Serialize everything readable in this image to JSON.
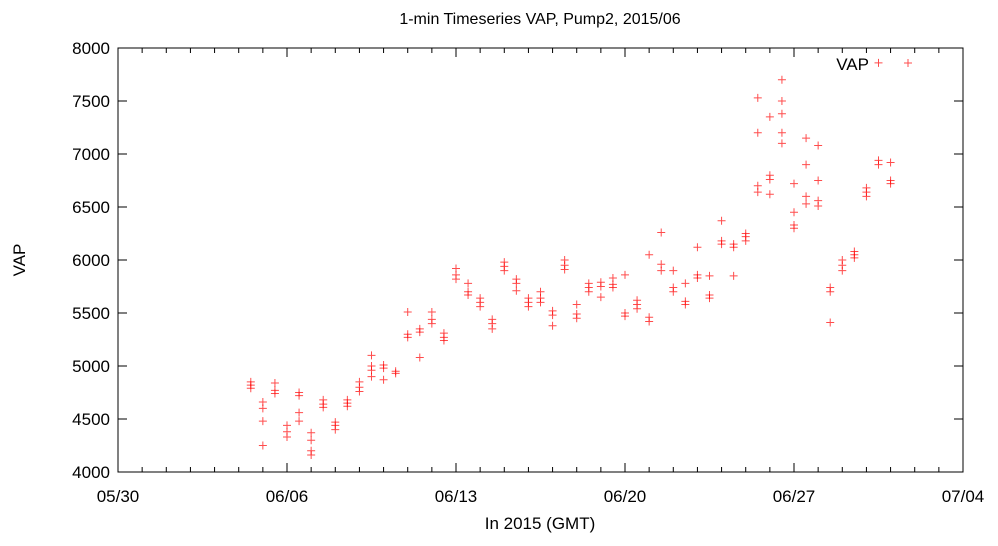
{
  "chart_data": {
    "type": "scatter",
    "title": "1-min Timeseries VAP, Pump2, 2015/06",
    "xlabel": "In 2015 (GMT)",
    "ylabel": "VAP",
    "xlim": [
      "2015-05-30",
      "2015-07-04"
    ],
    "ylim": [
      4000,
      8000
    ],
    "x_ticks": [
      "05/30",
      "06/06",
      "06/13",
      "06/20",
      "06/27",
      "07/04"
    ],
    "y_ticks": [
      "4000",
      "4500",
      "5000",
      "5500",
      "6000",
      "6500",
      "7000",
      "7500",
      "8000"
    ],
    "grid": false,
    "legend": {
      "position": "top-right",
      "entries": [
        "VAP"
      ]
    },
    "marker": "+",
    "series": [
      {
        "name": "VAP",
        "color": "#ff0000",
        "points": [
          [
            "2015-06-04 12:00",
            4850
          ],
          [
            "2015-06-04 12:00",
            4820
          ],
          [
            "2015-06-04 12:00",
            4790
          ],
          [
            "2015-06-05 00:00",
            4660
          ],
          [
            "2015-06-05 00:00",
            4600
          ],
          [
            "2015-06-05 00:00",
            4480
          ],
          [
            "2015-06-05 00:00",
            4250
          ],
          [
            "2015-06-05 12:00",
            4770
          ],
          [
            "2015-06-05 12:00",
            4740
          ],
          [
            "2015-06-05 12:00",
            4840
          ],
          [
            "2015-06-06 00:00",
            4440
          ],
          [
            "2015-06-06 00:00",
            4380
          ],
          [
            "2015-06-06 00:00",
            4330
          ],
          [
            "2015-06-06 12:00",
            4750
          ],
          [
            "2015-06-06 12:00",
            4720
          ],
          [
            "2015-06-06 12:00",
            4560
          ],
          [
            "2015-06-06 12:00",
            4480
          ],
          [
            "2015-06-07 00:00",
            4370
          ],
          [
            "2015-06-07 00:00",
            4300
          ],
          [
            "2015-06-07 00:00",
            4200
          ],
          [
            "2015-06-07 00:00",
            4160
          ],
          [
            "2015-06-07 12:00",
            4640
          ],
          [
            "2015-06-07 12:00",
            4610
          ],
          [
            "2015-06-07 12:00",
            4680
          ],
          [
            "2015-06-08 00:00",
            4470
          ],
          [
            "2015-06-08 00:00",
            4440
          ],
          [
            "2015-06-08 00:00",
            4400
          ],
          [
            "2015-06-08 12:00",
            4650
          ],
          [
            "2015-06-08 12:00",
            4620
          ],
          [
            "2015-06-08 12:00",
            4680
          ],
          [
            "2015-06-09 00:00",
            4800
          ],
          [
            "2015-06-09 00:00",
            4760
          ],
          [
            "2015-06-09 00:00",
            4850
          ],
          [
            "2015-06-09 12:00",
            5000
          ],
          [
            "2015-06-09 12:00",
            4960
          ],
          [
            "2015-06-09 12:00",
            4900
          ],
          [
            "2015-06-09 12:00",
            5100
          ],
          [
            "2015-06-10 00:00",
            5010
          ],
          [
            "2015-06-10 00:00",
            4980
          ],
          [
            "2015-06-10 00:00",
            4870
          ],
          [
            "2015-06-10 12:00",
            4950
          ],
          [
            "2015-06-10 12:00",
            4930
          ],
          [
            "2015-06-11 00:00",
            5300
          ],
          [
            "2015-06-11 00:00",
            5270
          ],
          [
            "2015-06-11 00:00",
            5510
          ],
          [
            "2015-06-11 12:00",
            5350
          ],
          [
            "2015-06-11 12:00",
            5320
          ],
          [
            "2015-06-11 12:00",
            5080
          ],
          [
            "2015-06-12 00:00",
            5440
          ],
          [
            "2015-06-12 00:00",
            5400
          ],
          [
            "2015-06-12 00:00",
            5510
          ],
          [
            "2015-06-12 12:00",
            5310
          ],
          [
            "2015-06-12 12:00",
            5270
          ],
          [
            "2015-06-12 12:00",
            5240
          ],
          [
            "2015-06-13 00:00",
            5860
          ],
          [
            "2015-06-13 00:00",
            5820
          ],
          [
            "2015-06-13 00:00",
            5920
          ],
          [
            "2015-06-13 12:00",
            5700
          ],
          [
            "2015-06-13 12:00",
            5670
          ],
          [
            "2015-06-13 12:00",
            5780
          ],
          [
            "2015-06-14 00:00",
            5600
          ],
          [
            "2015-06-14 00:00",
            5560
          ],
          [
            "2015-06-14 00:00",
            5640
          ],
          [
            "2015-06-14 12:00",
            5440
          ],
          [
            "2015-06-14 12:00",
            5400
          ],
          [
            "2015-06-14 12:00",
            5350
          ],
          [
            "2015-06-15 00:00",
            5940
          ],
          [
            "2015-06-15 00:00",
            5900
          ],
          [
            "2015-06-15 00:00",
            5980
          ],
          [
            "2015-06-15 12:00",
            5820
          ],
          [
            "2015-06-15 12:00",
            5780
          ],
          [
            "2015-06-15 12:00",
            5710
          ],
          [
            "2015-06-16 00:00",
            5640
          ],
          [
            "2015-06-16 00:00",
            5600
          ],
          [
            "2015-06-16 00:00",
            5560
          ],
          [
            "2015-06-16 12:00",
            5640
          ],
          [
            "2015-06-16 12:00",
            5600
          ],
          [
            "2015-06-16 12:00",
            5700
          ],
          [
            "2015-06-17 00:00",
            5520
          ],
          [
            "2015-06-17 00:00",
            5480
          ],
          [
            "2015-06-17 00:00",
            5380
          ],
          [
            "2015-06-17 12:00",
            5950
          ],
          [
            "2015-06-17 12:00",
            5910
          ],
          [
            "2015-06-17 12:00",
            6000
          ],
          [
            "2015-06-18 00:00",
            5490
          ],
          [
            "2015-06-18 00:00",
            5450
          ],
          [
            "2015-06-18 00:00",
            5580
          ],
          [
            "2015-06-18 12:00",
            5740
          ],
          [
            "2015-06-18 12:00",
            5700
          ],
          [
            "2015-06-18 12:00",
            5780
          ],
          [
            "2015-06-19 00:00",
            5790
          ],
          [
            "2015-06-19 00:00",
            5750
          ],
          [
            "2015-06-19 00:00",
            5650
          ],
          [
            "2015-06-19 12:00",
            5770
          ],
          [
            "2015-06-19 12:00",
            5740
          ],
          [
            "2015-06-19 12:00",
            5830
          ],
          [
            "2015-06-20 00:00",
            5500
          ],
          [
            "2015-06-20 00:00",
            5470
          ],
          [
            "2015-06-20 00:00",
            5860
          ],
          [
            "2015-06-20 12:00",
            5580
          ],
          [
            "2015-06-20 12:00",
            5540
          ],
          [
            "2015-06-20 12:00",
            5620
          ],
          [
            "2015-06-21 00:00",
            5460
          ],
          [
            "2015-06-21 00:00",
            5420
          ],
          [
            "2015-06-21 00:00",
            6050
          ],
          [
            "2015-06-21 12:00",
            5900
          ],
          [
            "2015-06-21 12:00",
            5960
          ],
          [
            "2015-06-21 12:00",
            6260
          ],
          [
            "2015-06-22 00:00",
            5740
          ],
          [
            "2015-06-22 00:00",
            5700
          ],
          [
            "2015-06-22 00:00",
            5900
          ],
          [
            "2015-06-22 12:00",
            5610
          ],
          [
            "2015-06-22 12:00",
            5580
          ],
          [
            "2015-06-22 12:00",
            5780
          ],
          [
            "2015-06-23 00:00",
            5860
          ],
          [
            "2015-06-23 00:00",
            5830
          ],
          [
            "2015-06-23 00:00",
            6120
          ],
          [
            "2015-06-23 12:00",
            5670
          ],
          [
            "2015-06-23 12:00",
            5640
          ],
          [
            "2015-06-23 12:00",
            5850
          ],
          [
            "2015-06-24 00:00",
            6180
          ],
          [
            "2015-06-24 00:00",
            6150
          ],
          [
            "2015-06-24 00:00",
            6370
          ],
          [
            "2015-06-24 12:00",
            6150
          ],
          [
            "2015-06-24 12:00",
            6120
          ],
          [
            "2015-06-24 12:00",
            5850
          ],
          [
            "2015-06-25 00:00",
            6250
          ],
          [
            "2015-06-25 00:00",
            6220
          ],
          [
            "2015-06-25 00:00",
            6180
          ],
          [
            "2015-06-25 12:00",
            6700
          ],
          [
            "2015-06-25 12:00",
            6640
          ],
          [
            "2015-06-25 12:00",
            7200
          ],
          [
            "2015-06-25 12:00",
            7530
          ],
          [
            "2015-06-26 00:00",
            6800
          ],
          [
            "2015-06-26 00:00",
            6760
          ],
          [
            "2015-06-26 00:00",
            6620
          ],
          [
            "2015-06-26 00:00",
            7350
          ],
          [
            "2015-06-26 12:00",
            7100
          ],
          [
            "2015-06-26 12:00",
            7200
          ],
          [
            "2015-06-26 12:00",
            7380
          ],
          [
            "2015-06-26 12:00",
            7500
          ],
          [
            "2015-06-26 12:00",
            7700
          ],
          [
            "2015-06-27 00:00",
            6330
          ],
          [
            "2015-06-27 00:00",
            6300
          ],
          [
            "2015-06-27 00:00",
            6450
          ],
          [
            "2015-06-27 00:00",
            6720
          ],
          [
            "2015-06-27 12:00",
            6530
          ],
          [
            "2015-06-27 12:00",
            6600
          ],
          [
            "2015-06-27 12:00",
            6900
          ],
          [
            "2015-06-27 12:00",
            7150
          ],
          [
            "2015-06-28 00:00",
            6510
          ],
          [
            "2015-06-28 00:00",
            6560
          ],
          [
            "2015-06-28 00:00",
            6750
          ],
          [
            "2015-06-28 00:00",
            7080
          ],
          [
            "2015-06-28 12:00",
            5700
          ],
          [
            "2015-06-28 12:00",
            5740
          ],
          [
            "2015-06-28 12:00",
            5410
          ],
          [
            "2015-06-29 00:00",
            5950
          ],
          [
            "2015-06-29 00:00",
            5900
          ],
          [
            "2015-06-29 00:00",
            6000
          ],
          [
            "2015-06-29 12:00",
            6050
          ],
          [
            "2015-06-29 12:00",
            6020
          ],
          [
            "2015-06-29 12:00",
            6080
          ],
          [
            "2015-06-30 00:00",
            6640
          ],
          [
            "2015-06-30 00:00",
            6600
          ],
          [
            "2015-06-30 00:00",
            6680
          ],
          [
            "2015-06-30 12:00",
            6940
          ],
          [
            "2015-06-30 12:00",
            6900
          ],
          [
            "2015-06-30 12:00",
            7860
          ],
          [
            "2015-07-01 00:00",
            6750
          ],
          [
            "2015-07-01 00:00",
            6720
          ],
          [
            "2015-07-01 00:00",
            6920
          ]
        ]
      }
    ]
  }
}
